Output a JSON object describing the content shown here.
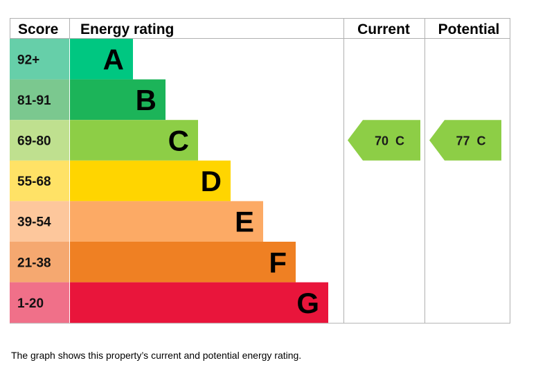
{
  "chart_data": {
    "type": "bar",
    "headers": {
      "score": "Score",
      "rating": "Energy rating",
      "current": "Current",
      "potential": "Potential"
    },
    "bands": [
      {
        "letter": "A",
        "range": "92+",
        "min": 92,
        "color": "#00c781",
        "score_bg": "#66cfa9"
      },
      {
        "letter": "B",
        "range": "81-91",
        "min": 81,
        "color": "#1cb459",
        "score_bg": "#7bc88f"
      },
      {
        "letter": "C",
        "range": "69-80",
        "min": 69,
        "color": "#8dce46",
        "score_bg": "#bfe08f"
      },
      {
        "letter": "D",
        "range": "55-68",
        "min": 55,
        "color": "#ffd500",
        "score_bg": "#ffe266"
      },
      {
        "letter": "E",
        "range": "39-54",
        "min": 39,
        "color": "#fcaa65",
        "score_bg": "#fdc79c"
      },
      {
        "letter": "F",
        "range": "21-38",
        "min": 21,
        "color": "#ef8023",
        "score_bg": "#f5a870"
      },
      {
        "letter": "G",
        "range": "1-20",
        "min": 1,
        "color": "#e9153b",
        "score_bg": "#f07089"
      }
    ],
    "current": {
      "value": 70,
      "band": "C",
      "label": "70  C",
      "color": "#8dce46"
    },
    "potential": {
      "value": 77,
      "band": "C",
      "label": "77  C",
      "color": "#8dce46"
    }
  },
  "caption": "The graph shows this property’s current and potential energy rating.",
  "colors": {
    "border": "#b0b0b0",
    "text": "#000000"
  }
}
